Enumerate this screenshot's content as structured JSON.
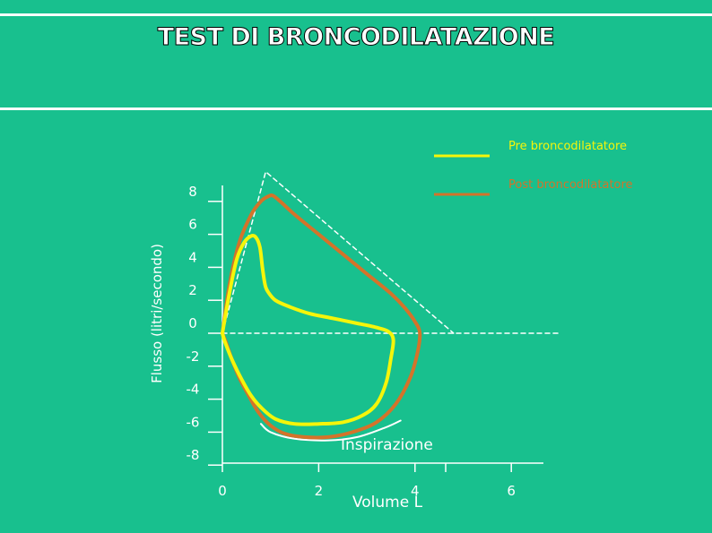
{
  "page": {
    "title": "TEST DI BRONCODILATAZIONE",
    "background": "#18c08e"
  },
  "chart_data": {
    "type": "line",
    "title": "TEST DI BRONCODILATAZIONE",
    "xlabel": "Volume L",
    "ylabel": "Flusso (litri/secondo)",
    "x_ticks": [
      0,
      2,
      4,
      6
    ],
    "y_ticks": [
      8,
      6,
      4,
      2,
      0,
      -2,
      -4,
      -6,
      -8
    ],
    "xlim": [
      0,
      6.5
    ],
    "ylim": [
      -8,
      9
    ],
    "annotation": "Inspirazione",
    "legend": {
      "position": "top-right"
    },
    "series": [
      {
        "name": "Pre broncodilatatore",
        "color": "#f5f50a",
        "x": [
          0,
          0.15,
          0.3,
          0.45,
          0.6,
          0.7,
          0.78,
          0.83,
          0.87,
          0.9,
          0.95,
          1.1,
          1.4,
          1.8,
          2.3,
          2.8,
          3.2,
          3.45,
          3.55,
          3.5,
          3.4,
          3.2,
          2.9,
          2.5,
          2.0,
          1.5,
          1.1,
          0.8,
          0.6,
          0.4,
          0.2,
          0.05,
          0
        ],
        "y": [
          0,
          2.5,
          4.5,
          5.5,
          5.9,
          5.8,
          5.2,
          4.0,
          3.2,
          2.8,
          2.5,
          2.0,
          1.6,
          1.2,
          0.9,
          0.6,
          0.35,
          0.1,
          -0.4,
          -1.5,
          -3.0,
          -4.3,
          -5.0,
          -5.4,
          -5.5,
          -5.5,
          -5.2,
          -4.5,
          -3.8,
          -2.8,
          -1.6,
          -0.5,
          0
        ]
      },
      {
        "name": "Post broncodilatatore",
        "color": "#d4732a",
        "x": [
          0,
          0.15,
          0.35,
          0.6,
          0.8,
          0.95,
          1.05,
          1.2,
          1.5,
          2.0,
          2.5,
          3.0,
          3.5,
          3.8,
          4.0,
          4.1,
          4.05,
          3.9,
          3.6,
          3.2,
          2.7,
          2.2,
          1.7,
          1.3,
          1.0,
          0.75,
          0.55,
          0.35,
          0.2,
          0.08,
          0
        ],
        "y": [
          0,
          3.0,
          5.5,
          7.2,
          8.0,
          8.3,
          8.35,
          8.0,
          7.2,
          6.0,
          4.8,
          3.6,
          2.4,
          1.5,
          0.7,
          0,
          -1.2,
          -2.7,
          -4.3,
          -5.4,
          -6.0,
          -6.3,
          -6.3,
          -6.1,
          -5.6,
          -4.8,
          -3.8,
          -2.7,
          -1.6,
          -0.6,
          0
        ]
      },
      {
        "name": "",
        "color": "#ffffff",
        "dashed": true,
        "x": [
          0,
          0.9,
          4.8
        ],
        "y": [
          0,
          9.8,
          0
        ]
      },
      {
        "name": "",
        "color": "#ffffff",
        "dashed": true,
        "x": [
          0,
          7.0
        ],
        "y": [
          0,
          0
        ]
      },
      {
        "name": "",
        "color": "#ffffff",
        "dashed": false,
        "x": [
          0.8,
          1.0,
          1.5,
          2.2,
          2.8,
          3.4,
          3.7
        ],
        "y": [
          -5.5,
          -6.0,
          -6.4,
          -6.5,
          -6.3,
          -5.7,
          -5.3
        ]
      }
    ]
  }
}
